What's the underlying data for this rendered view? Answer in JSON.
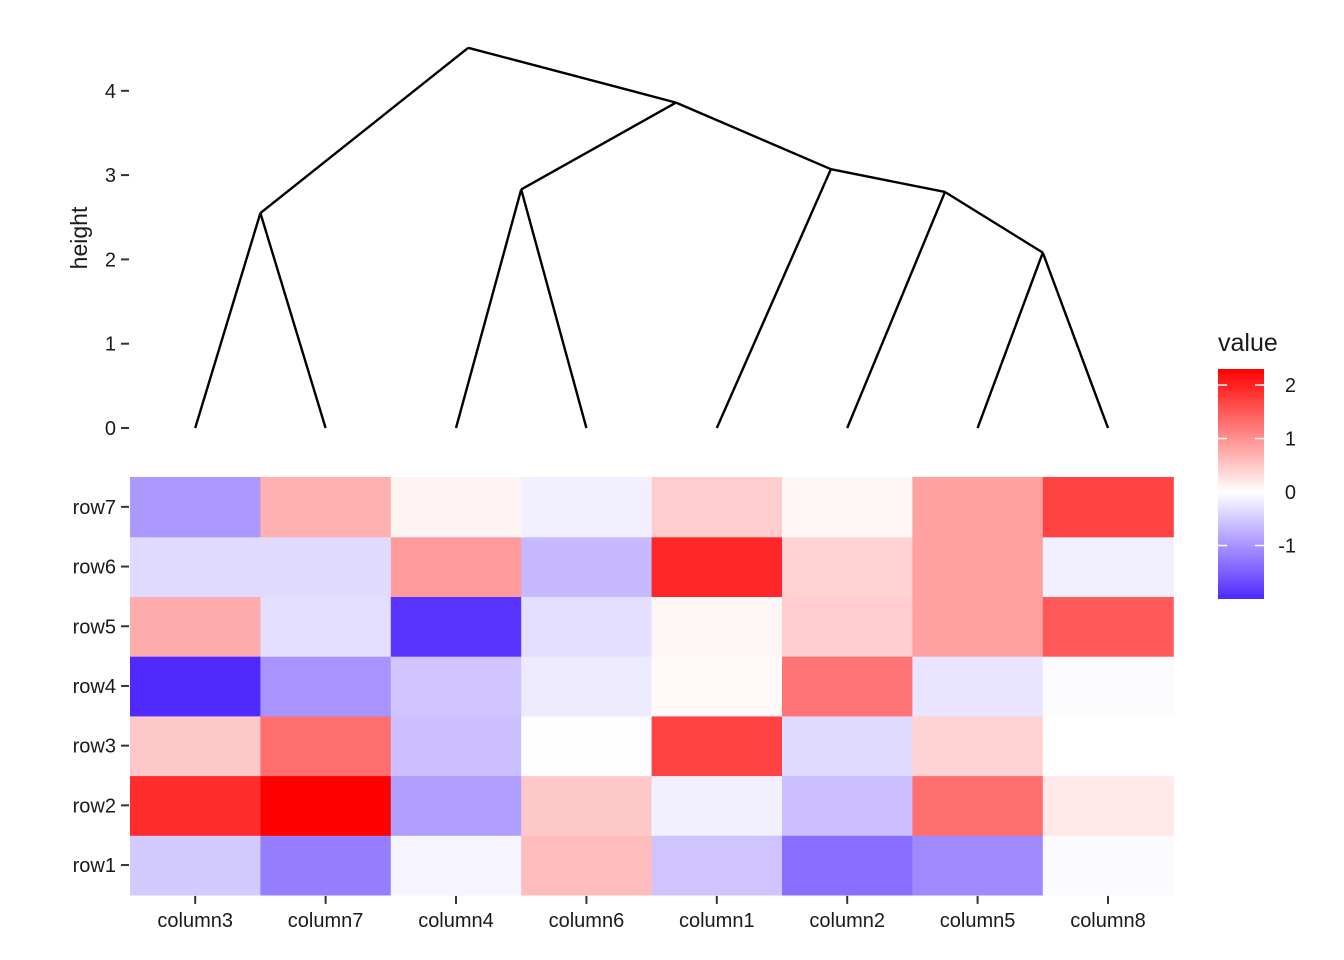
{
  "chart_data": [
    {
      "type": "dendrogram",
      "ylabel": "height",
      "ylim": [
        0,
        4.6
      ],
      "yticks": [
        0,
        1,
        2,
        3,
        4
      ],
      "leaves": [
        "column3",
        "column7",
        "column4",
        "column6",
        "column1",
        "column2",
        "column5",
        "column8"
      ],
      "merges": [
        {
          "left": "column3",
          "right": "column7",
          "height": 2.55
        },
        {
          "left": "column4",
          "right": "column6",
          "height": 2.83
        },
        {
          "left": "column5",
          "right": "column8",
          "height": 2.08
        },
        {
          "left": "column2",
          "right": "column5+column8",
          "height": 2.8
        },
        {
          "left": "column1",
          "right": "column2+column5+column8",
          "height": 3.07
        },
        {
          "left": "column4+column6",
          "right": "column1+column2+column5+column8",
          "height": 3.86
        },
        {
          "left": "column3+column7",
          "right": "column4+column6+column1+column2+column5+column8",
          "height": 4.51
        }
      ]
    },
    {
      "type": "heatmap",
      "x_categories": [
        "column3",
        "column7",
        "column4",
        "column6",
        "column1",
        "column2",
        "column5",
        "column8"
      ],
      "y_categories": [
        "row1",
        "row2",
        "row3",
        "row4",
        "row5",
        "row6",
        "row7"
      ],
      "values": [
        [
          -0.5,
          -1.2,
          -0.1,
          0.6,
          -0.55,
          -1.35,
          -1.1,
          -0.05
        ],
        [
          1.9,
          2.3,
          -0.9,
          0.5,
          -0.15,
          -0.6,
          1.3,
          0.2
        ],
        [
          0.5,
          1.3,
          -0.6,
          -0.02,
          1.7,
          -0.35,
          0.4,
          0.0
        ],
        [
          -2.0,
          -1.0,
          -0.55,
          -0.2,
          0.05,
          1.25,
          -0.25,
          -0.03
        ],
        [
          0.75,
          -0.3,
          -1.9,
          -0.3,
          0.08,
          0.45,
          0.85,
          1.5
        ],
        [
          -0.35,
          -0.35,
          0.9,
          -0.65,
          1.95,
          0.4,
          0.85,
          -0.15
        ],
        [
          -0.95,
          0.7,
          0.1,
          -0.15,
          0.45,
          0.07,
          0.85,
          1.7
        ]
      ],
      "legend": {
        "title": "value",
        "placement": "right",
        "ticks": [
          -1,
          0,
          1,
          2
        ],
        "range": [
          -2.0,
          2.3
        ],
        "colors": {
          "low": "#5029ff",
          "mid": "#ffffff",
          "high": "#ff0000"
        }
      }
    }
  ]
}
